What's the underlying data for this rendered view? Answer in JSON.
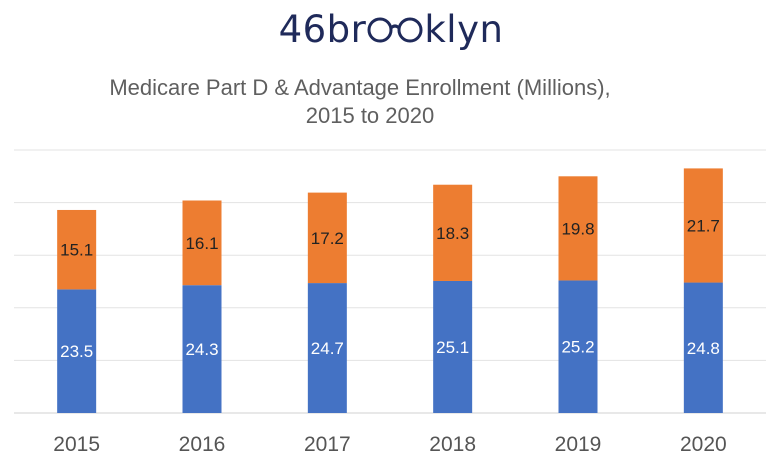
{
  "logo": {
    "pre": "46br",
    "post": "klyn",
    "glasses_icon": "eyeglasses-icon",
    "color": "#1f2a5a"
  },
  "chart_data": {
    "type": "bar",
    "stacked": true,
    "title": "Medicare Part D & Advantage Enrollment (Millions),",
    "subtitle": "2015 to 2020",
    "categories": [
      "2015",
      "2016",
      "2017",
      "2018",
      "2019",
      "2020"
    ],
    "series": [
      {
        "name": "Blue series",
        "color": "#4472c4",
        "label_color": "#ffffff",
        "values": [
          23.5,
          24.3,
          24.7,
          25.1,
          25.2,
          24.8
        ],
        "labels": [
          "23.5",
          "24.3",
          "24.7",
          "25.1",
          "25.2",
          "24.8"
        ]
      },
      {
        "name": "Orange series",
        "color": "#ed7d31",
        "label_color": "#222222",
        "values": [
          15.1,
          16.1,
          17.2,
          18.3,
          19.8,
          21.7
        ],
        "labels": [
          "15.1",
          "16.1",
          "17.2",
          "18.3",
          "19.8",
          "21.7"
        ]
      }
    ],
    "ylim": [
      0,
      50
    ],
    "gridlines": [
      0,
      10,
      20,
      30,
      40,
      50
    ],
    "grid": true,
    "xlabel": "",
    "ylabel": ""
  }
}
